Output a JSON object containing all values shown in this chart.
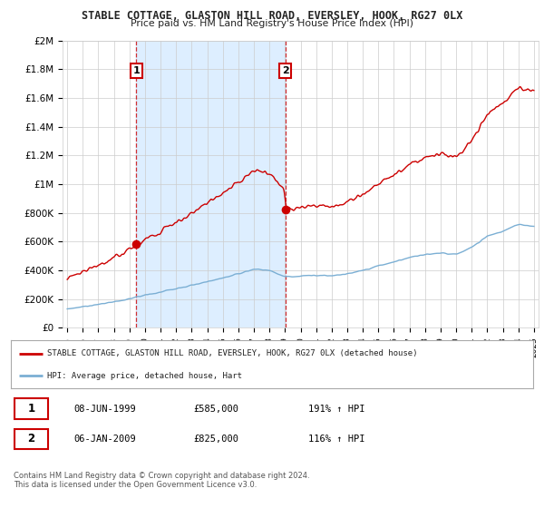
{
  "title": "STABLE COTTAGE, GLASTON HILL ROAD, EVERSLEY, HOOK, RG27 0LX",
  "subtitle": "Price paid vs. HM Land Registry's House Price Index (HPI)",
  "ylim": [
    0,
    2000000
  ],
  "yticks": [
    0,
    200000,
    400000,
    600000,
    800000,
    1000000,
    1200000,
    1400000,
    1600000,
    1800000,
    2000000
  ],
  "ytick_labels": [
    "£0",
    "£200K",
    "£400K",
    "£600K",
    "£800K",
    "£1M",
    "£1.2M",
    "£1.4M",
    "£1.6M",
    "£1.8M",
    "£2M"
  ],
  "xlim_start": 1994.7,
  "xlim_end": 2025.3,
  "purchase1_date": 1999.44,
  "purchase1_price": 585000,
  "purchase2_date": 2009.02,
  "purchase2_price": 825000,
  "red_line_color": "#cc0000",
  "blue_line_color": "#7bafd4",
  "shade_color": "#ddeeff",
  "dashed_line_color": "#cc0000",
  "legend_label_red": "STABLE COTTAGE, GLASTON HILL ROAD, EVERSLEY, HOOK, RG27 0LX (detached house)",
  "legend_label_blue": "HPI: Average price, detached house, Hart",
  "table_row1": [
    "1",
    "08-JUN-1999",
    "£585,000",
    "191% ↑ HPI"
  ],
  "table_row2": [
    "2",
    "06-JAN-2009",
    "£825,000",
    "116% ↑ HPI"
  ],
  "footer": "Contains HM Land Registry data © Crown copyright and database right 2024.\nThis data is licensed under the Open Government Licence v3.0.",
  "background_color": "#ffffff",
  "grid_color": "#cccccc"
}
